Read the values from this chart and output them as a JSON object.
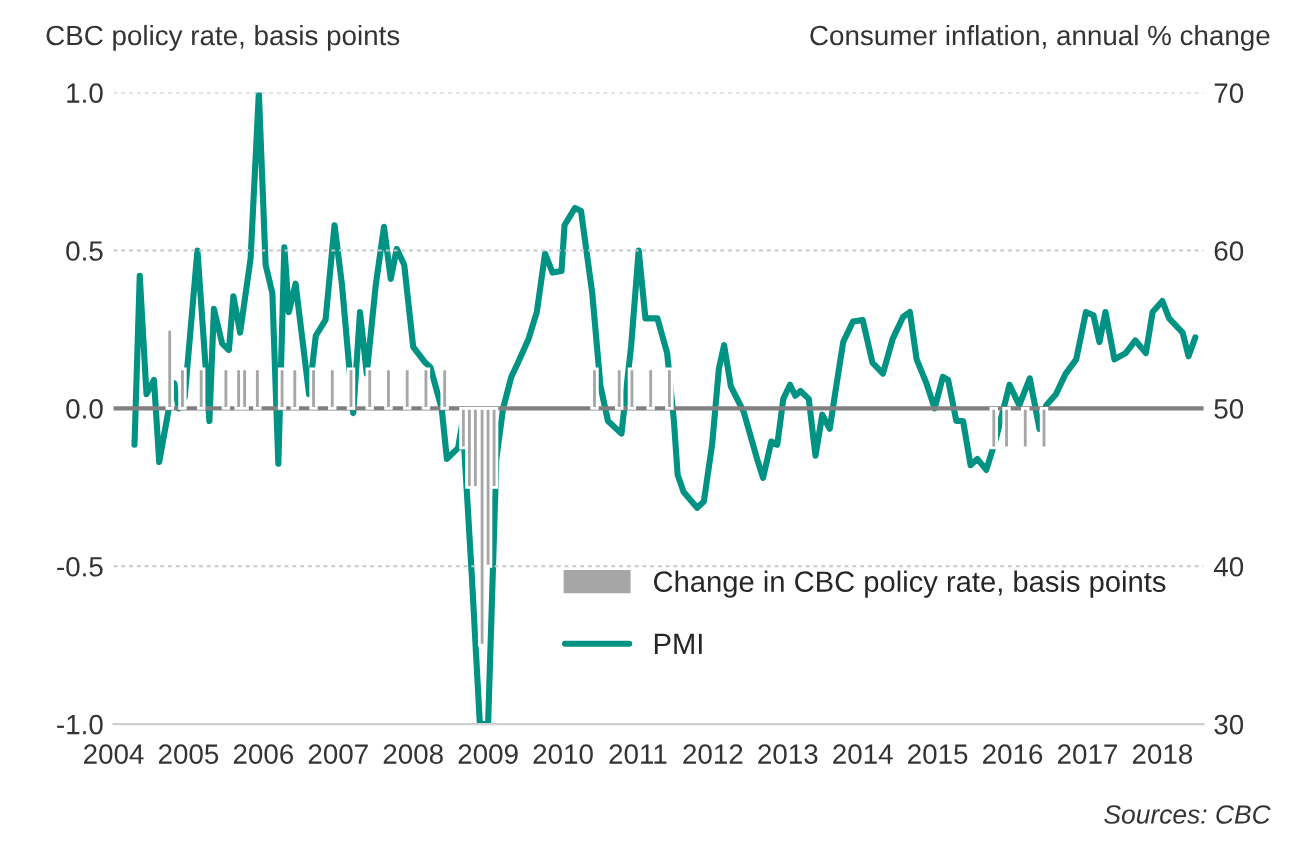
{
  "chart_data": {
    "type": "bar",
    "ylabel": "CBC policy rate, basis points",
    "y2label": "Consumer inflation, annual % change",
    "annotations": [
      "Sources: CBC"
    ],
    "xlim": [
      2004,
      2018.55
    ],
    "xticks": [
      2004,
      2005,
      2006,
      2007,
      2008,
      2009,
      2010,
      2011,
      2012,
      2013,
      2014,
      2015,
      2016,
      2017,
      2018
    ],
    "ylim": [
      -1,
      1
    ],
    "yticks": [
      {
        "value": -1,
        "label": "-1.0"
      },
      {
        "value": -0.5,
        "label": "-0.5"
      },
      {
        "value": 0,
        "label": "0.0"
      },
      {
        "value": 0.5,
        "label": "0.5"
      },
      {
        "value": 1,
        "label": "1.0"
      }
    ],
    "y2lim": [
      30,
      70
    ],
    "y2ticks": [
      30,
      40,
      50,
      60,
      70
    ],
    "grid": "y",
    "legend": "bottom right",
    "ref_lines": [
      {
        "axis": "y",
        "value": 0,
        "color": "#808080"
      }
    ],
    "series": [
      {
        "name": "Change in CBC policy rate, basis points",
        "axis": "y",
        "color": "#a6a6a6",
        "x": [
          2004.75,
          2004.92,
          2005.17,
          2005.5,
          2005.67,
          2005.75,
          2005.92,
          2006.25,
          2006.42,
          2006.67,
          2006.92,
          2007.17,
          2007.42,
          2007.67,
          2007.92,
          2008.17,
          2008.42,
          2008.67,
          2008.75,
          2008.83,
          2008.92,
          2009.0,
          2009.08,
          2010.42,
          2010.75,
          2010.92,
          2011.17,
          2011.42,
          2015.75,
          2015.92,
          2016.17,
          2016.42
        ],
        "values": [
          0.25,
          0.125,
          0.125,
          0.125,
          0.125,
          0.125,
          0.125,
          0.125,
          0.125,
          0.125,
          0.125,
          0.125,
          0.125,
          0.125,
          0.125,
          0.125,
          0.125,
          -0.125,
          -0.25,
          -0.25,
          -0.75,
          -0.5,
          -0.25,
          0.125,
          0.125,
          0.125,
          0.125,
          0.125,
          -0.125,
          -0.125,
          -0.125,
          -0.125
        ]
      },
      {
        "name": "PMI",
        "type": "line",
        "axis": "y2",
        "color": "#009384",
        "x": [
          2004.28,
          2004.35,
          2004.44,
          2004.54,
          2004.61,
          2004.75,
          2004.81,
          2004.87,
          2004.95,
          2005.12,
          2005.28,
          2005.34,
          2005.45,
          2005.54,
          2005.6,
          2005.69,
          2005.83,
          2005.94,
          2006.03,
          2006.12,
          2006.2,
          2006.28,
          2006.34,
          2006.43,
          2006.61,
          2006.7,
          2006.83,
          2006.95,
          2007.05,
          2007.2,
          2007.29,
          2007.38,
          2007.5,
          2007.61,
          2007.7,
          2007.78,
          2007.88,
          2008.0,
          2008.16,
          2008.23,
          2008.38,
          2008.45,
          2008.6,
          2008.66,
          2008.78,
          2008.89,
          2009.0,
          2009.11,
          2009.2,
          2009.31,
          2009.4,
          2009.54,
          2009.65,
          2009.76,
          2009.86,
          2009.98,
          2010.02,
          2010.16,
          2010.24,
          2010.39,
          2010.5,
          2010.6,
          2010.78,
          2010.91,
          2011.01,
          2011.1,
          2011.26,
          2011.39,
          2011.48,
          2011.53,
          2011.61,
          2011.79,
          2011.88,
          2011.99,
          2012.08,
          2012.15,
          2012.24,
          2012.41,
          2012.59,
          2012.67,
          2012.78,
          2012.86,
          2012.94,
          2013.03,
          2013.1,
          2013.17,
          2013.28,
          2013.37,
          2013.46,
          2013.56,
          2013.65,
          2013.74,
          2013.87,
          2014.0,
          2014.13,
          2014.27,
          2014.4,
          2014.54,
          2014.63,
          2014.72,
          2014.85,
          2014.96,
          2015.07,
          2015.14,
          2015.25,
          2015.34,
          2015.44,
          2015.53,
          2015.65,
          2015.78,
          2015.96,
          2016.09,
          2016.23,
          2016.36,
          2016.45,
          2016.58,
          2016.71,
          2016.85,
          2016.98,
          2017.08,
          2017.16,
          2017.24,
          2017.36,
          2017.51,
          2017.64,
          2017.78,
          2017.87,
          2018.0,
          2018.09,
          2018.27,
          2018.35,
          2018.44
        ],
        "values": [
          47.7,
          58.4,
          50.9,
          51.8,
          46.6,
          50.3,
          51.6,
          50.0,
          50.7,
          60.0,
          49.2,
          56.3,
          54.1,
          53.7,
          57.1,
          54.8,
          59.5,
          70.0,
          59.1,
          57.3,
          46.5,
          60.2,
          56.1,
          57.9,
          50.9,
          54.6,
          55.6,
          61.6,
          57.8,
          49.7,
          56.1,
          52.2,
          57.8,
          61.5,
          58.2,
          60.1,
          59.1,
          53.9,
          52.9,
          52.6,
          50.0,
          46.8,
          47.5,
          49.2,
          39.6,
          30.0,
          30.0,
          46.8,
          50.0,
          52.0,
          52.9,
          54.4,
          56.1,
          59.8,
          58.6,
          58.7,
          61.6,
          62.7,
          62.5,
          57.3,
          51.4,
          49.2,
          48.4,
          54.0,
          60.0,
          55.7,
          55.7,
          53.5,
          49.2,
          45.8,
          44.7,
          43.7,
          44.1,
          47.7,
          52.5,
          54.0,
          51.4,
          49.8,
          46.8,
          45.6,
          47.9,
          47.7,
          50.6,
          51.5,
          50.8,
          51.1,
          50.6,
          47.0,
          49.6,
          48.7,
          51.5,
          54.2,
          55.5,
          55.6,
          52.9,
          52.2,
          54.4,
          55.8,
          56.1,
          53.1,
          51.6,
          50.0,
          52.0,
          51.8,
          49.2,
          49.2,
          46.4,
          46.8,
          46.1,
          48.1,
          51.5,
          50.2,
          51.9,
          48.7,
          50.2,
          50.9,
          52.2,
          53.1,
          56.1,
          55.9,
          54.2,
          56.1,
          53.1,
          53.5,
          54.3,
          53.5,
          56.1,
          56.8,
          55.7,
          54.8,
          53.3,
          54.5
        ]
      }
    ]
  }
}
